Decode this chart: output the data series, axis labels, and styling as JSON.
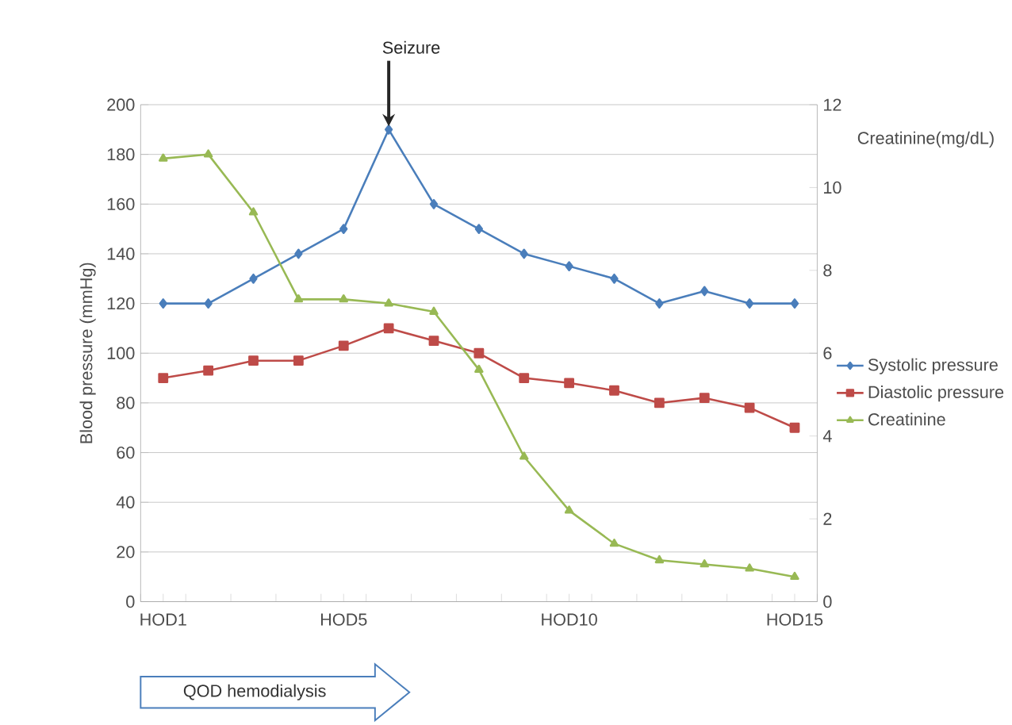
{
  "chart_data": {
    "type": "line",
    "ylabel": "Blood pressure (mmHg)",
    "y2label": "Creatinine(mg/dL)",
    "categories": [
      "HOD1",
      null,
      null,
      null,
      "HOD5",
      null,
      null,
      null,
      null,
      "HOD10",
      null,
      null,
      null,
      null,
      "HOD15"
    ],
    "series": [
      {
        "name": "Systolic pressure",
        "color": "#4a7ebb",
        "marker": "diamond",
        "values": [
          120,
          120,
          130,
          140,
          150,
          190,
          160,
          150,
          140,
          135,
          130,
          120,
          125,
          120,
          120
        ]
      },
      {
        "name": "Diastolic pressure",
        "color": "#be4b48",
        "marker": "square",
        "values": [
          90,
          93,
          97,
          97,
          103,
          110,
          105,
          100,
          90,
          88,
          85,
          80,
          82,
          78,
          70
        ]
      },
      {
        "name": "Creatinine",
        "color": "#98b954",
        "marker": "triangle",
        "axis": "y2",
        "values": [
          10.7,
          10.8,
          9.4,
          7.3,
          7.3,
          7.2,
          7.0,
          5.6,
          3.5,
          2.2,
          1.4,
          1.0,
          0.9,
          0.8,
          0.6
        ]
      }
    ],
    "ylim": [
      0,
      200
    ],
    "yticks": [
      0,
      20,
      40,
      60,
      80,
      100,
      120,
      140,
      160,
      180,
      200
    ],
    "y2lim": [
      0,
      12
    ],
    "y2ticks": [
      0,
      2,
      4,
      6,
      8,
      10,
      12
    ],
    "grid": "y",
    "legend": "right",
    "annotations": [
      "Seizure",
      "QOD hemodialysis"
    ]
  }
}
